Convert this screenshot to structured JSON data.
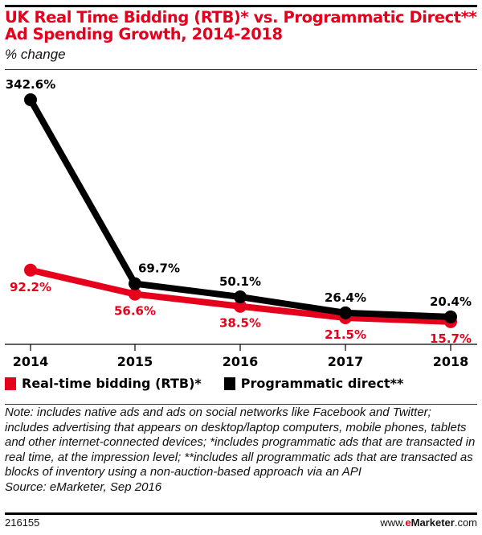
{
  "chart_data": {
    "type": "line",
    "title": "UK Real Time Bidding (RTB)* vs. Programmatic Direct** Ad Spending Growth, 2014-2018",
    "title_lines": [
      "UK Real Time Bidding (RTB)* vs. Programmatic Direct**",
      "Ad Spending Growth, 2014-2018"
    ],
    "subtitle": "% change",
    "xlabel": "",
    "ylabel": "",
    "categories": [
      "2014",
      "2015",
      "2016",
      "2017",
      "2018"
    ],
    "ylim": [
      0,
      342.6
    ],
    "grid": false,
    "legend_position": "bottom-left",
    "series": [
      {
        "name": "Real-time bidding (RTB)*",
        "color": "#e5001c",
        "values": [
          92.2,
          56.6,
          38.5,
          21.5,
          15.7
        ],
        "labels": [
          "92.2%",
          "56.6%",
          "38.5%",
          "21.5%",
          "15.7%"
        ],
        "label_position": "below"
      },
      {
        "name": "Programmatic direct**",
        "color": "#000000",
        "values": [
          342.6,
          69.7,
          50.1,
          26.4,
          20.4
        ],
        "labels": [
          "342.6%",
          "69.7%",
          "50.1%",
          "26.4%",
          "20.4%"
        ],
        "label_position": "above"
      }
    ]
  },
  "note": "Note: includes native ads and ads on social networks like Facebook and Twitter; includes advertising that appears on desktop/laptop computers, mobile phones, tablets and other internet-connected devices; *includes programmatic ads that are transacted in real time, at the impression level; **includes all programmatic ads that are transacted as blocks of inventory using a non-auction-based approach via an API",
  "source": "Source: eMarketer, Sep 2016",
  "footer": {
    "chart_id": "216155",
    "brand_prefix": "www.",
    "brand_e": "e",
    "brand_main": "Marketer",
    "brand_suffix": ".com"
  }
}
